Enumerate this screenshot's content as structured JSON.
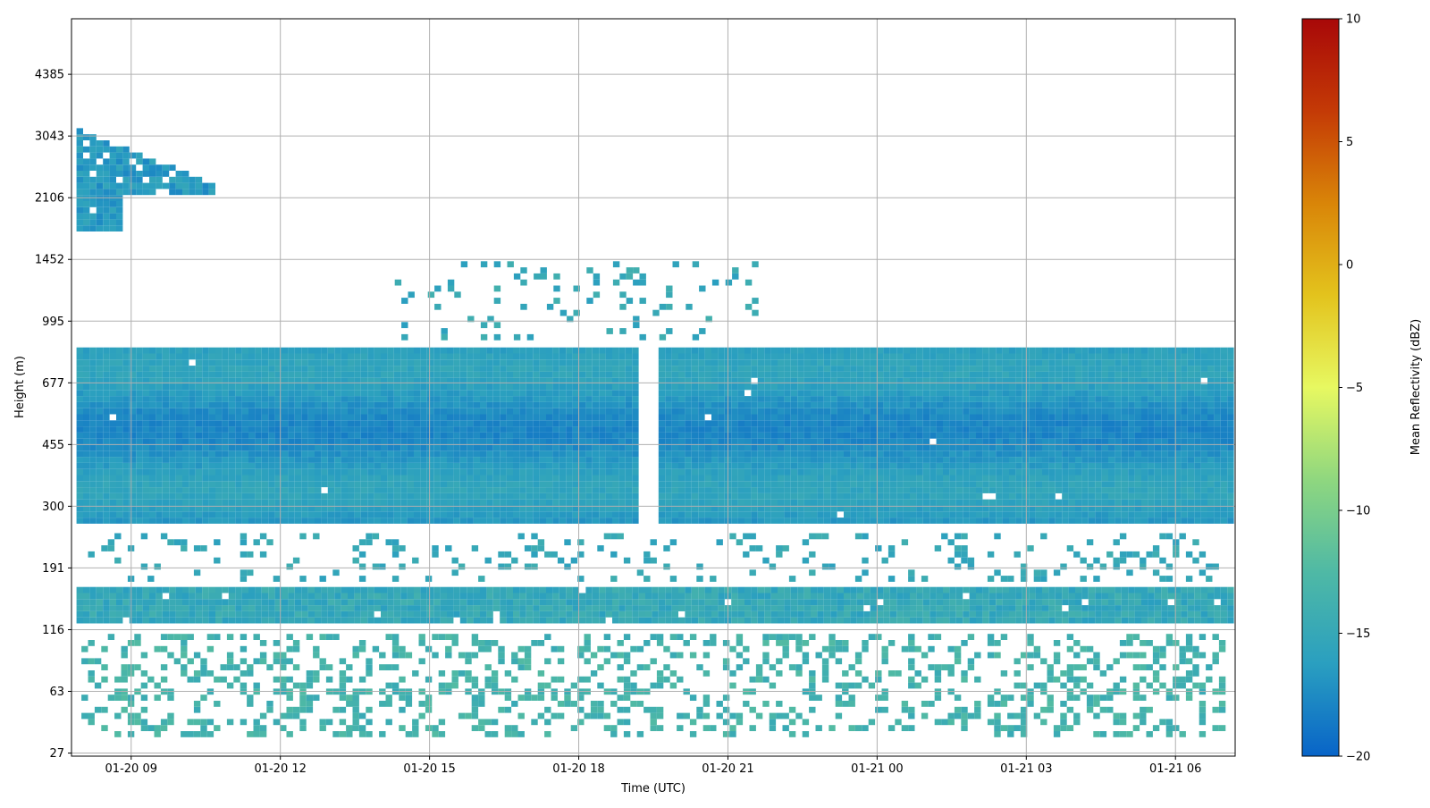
{
  "chart_data": {
    "type": "heatmap",
    "title": "",
    "xlabel": "Time (UTC)",
    "ylabel": "Height (m)",
    "x_ticks": [
      "01-20 09",
      "01-20 12",
      "01-20 15",
      "01-20 18",
      "01-20 21",
      "01-21 00",
      "01-21 03",
      "01-21 06"
    ],
    "x_tick_hours": [
      9,
      12,
      15,
      18,
      21,
      24,
      27,
      30
    ],
    "xlim_hours": [
      7.8,
      31.2
    ],
    "y_ticks": [
      "27",
      "63",
      "116",
      "191",
      "300",
      "455",
      "677",
      "995",
      "1452",
      "2106",
      "3043",
      "4385"
    ],
    "ylim_levels": [
      -0.05,
      11.9
    ],
    "grid": true,
    "colorbar": {
      "label": "Mean Reflectivity (dBZ)",
      "ticks": [
        "10",
        "5",
        "0",
        "−5",
        "−10",
        "−15",
        "−20"
      ],
      "tick_values": [
        10,
        5,
        0,
        -5,
        -10,
        -15,
        -20
      ],
      "range": [
        -20,
        10
      ],
      "colors": [
        "#0864c8",
        "#2a9fc0",
        "#4fb9a5",
        "#8fd77f",
        "#e7f861",
        "#e3c31d",
        "#d98508",
        "#c43a06",
        "#a80808"
      ]
    },
    "layers": [
      {
        "name": "upper-cloud",
        "x_hours": [
          7.9,
          10.6
        ],
        "height_m": [
          1750,
          3150
        ],
        "dbz": -16.5
      },
      {
        "name": "main-layer",
        "x_hours": [
          7.9,
          31.1
        ],
        "height_m": [
          270,
          850
        ],
        "dbz": -15.5,
        "gap_hours": [
          19.2,
          19.5
        ]
      },
      {
        "name": "sparse-cloud",
        "x_hours": [
          14.3,
          21.5
        ],
        "height_m": [
          900,
          1450
        ],
        "dbz": -15.0
      },
      {
        "name": "low-layer",
        "x_hours": [
          7.9,
          31.1
        ],
        "height_m": [
          125,
          165
        ],
        "dbz": -15.0
      },
      {
        "name": "near-surface",
        "x_hours": [
          8.0,
          31.0
        ],
        "height_m": [
          35,
          110
        ],
        "dbz": -13.5
      }
    ]
  }
}
